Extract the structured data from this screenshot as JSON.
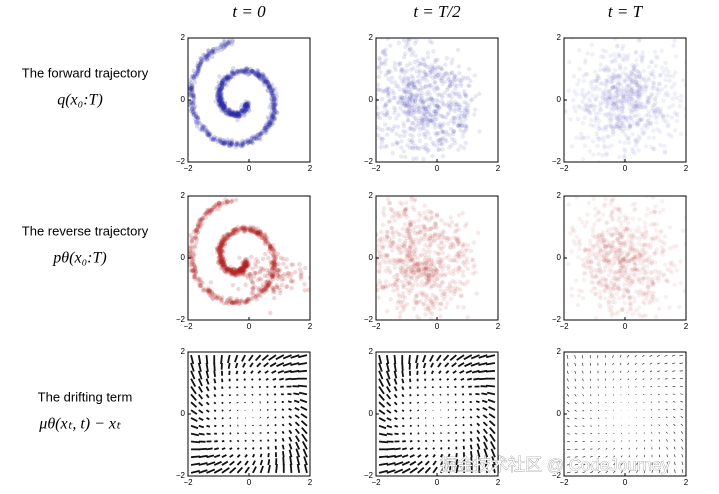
{
  "columns": [
    "t = 0",
    "t = T/2",
    "t = T"
  ],
  "rows": [
    {
      "label": "The forward trajectory",
      "formula": "q(x₀:T)"
    },
    {
      "label": "The reverse trajectory",
      "formula": "pθ(x₀:T)"
    },
    {
      "label": "The drifting term",
      "formula": "μθ(xₜ, t) − xₜ"
    }
  ],
  "axes": {
    "xlim": [
      -2,
      2
    ],
    "ylim": [
      -2,
      2
    ],
    "xticks": [
      {
        "value": -2,
        "label": "−2"
      },
      0,
      2
    ],
    "yticks": [
      {
        "value": -2,
        "label": "−2"
      },
      0,
      2
    ]
  },
  "watermark": "掘金技术社区 @ CodeJourney"
}
